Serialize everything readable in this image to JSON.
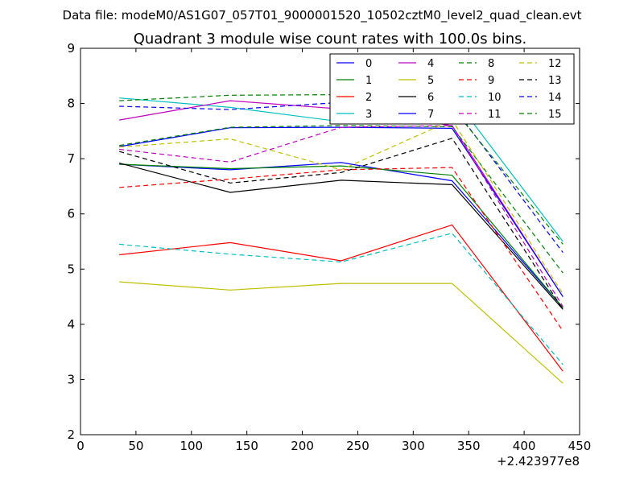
{
  "chart_data": {
    "type": "line",
    "suptitle": "Data file: modeM0/AS1G07_057T01_9000001520_10502cztM0_level2_quad_clean.evt",
    "title": "Quadrant 3 module wise count rates with 100.0s bins.",
    "xlabel": "",
    "ylabel": "",
    "x_offset_label": "+2.423977e8",
    "xlim": [
      0,
      450
    ],
    "ylim": [
      2,
      9
    ],
    "xticks": [
      0,
      50,
      100,
      150,
      200,
      250,
      300,
      350,
      400,
      450
    ],
    "yticks": [
      2,
      3,
      4,
      5,
      6,
      7,
      8,
      9
    ],
    "grid": false,
    "legend": "top-right",
    "x": [
      35,
      135,
      235,
      335,
      435
    ],
    "series": [
      {
        "name": "0",
        "color": "#0000ff",
        "dash": "solid",
        "values": [
          6.9,
          6.8,
          6.93,
          6.6,
          4.3
        ]
      },
      {
        "name": "1",
        "color": "#008000",
        "dash": "solid",
        "values": [
          6.9,
          6.82,
          6.87,
          6.7,
          4.3
        ]
      },
      {
        "name": "2",
        "color": "#ff0000",
        "dash": "solid",
        "values": [
          5.26,
          5.48,
          5.15,
          5.8,
          3.15
        ]
      },
      {
        "name": "3",
        "color": "#00bfbf",
        "dash": "solid",
        "values": [
          8.1,
          7.93,
          7.67,
          8.15,
          5.5
        ]
      },
      {
        "name": "4",
        "color": "#bf00bf",
        "dash": "solid",
        "values": [
          7.7,
          8.05,
          7.9,
          7.6,
          4.5
        ]
      },
      {
        "name": "5",
        "color": "#bfbf00",
        "dash": "solid",
        "values": [
          4.77,
          4.62,
          4.74,
          4.74,
          2.93
        ]
      },
      {
        "name": "6",
        "color": "#000000",
        "dash": "solid",
        "values": [
          6.92,
          6.39,
          6.61,
          6.53,
          4.27
        ]
      },
      {
        "name": "7",
        "color": "#0000ff",
        "dash": "solid",
        "values": [
          7.22,
          7.56,
          7.57,
          7.55,
          4.5
        ]
      },
      {
        "name": "8",
        "color": "#008000",
        "dash": "dashed",
        "values": [
          7.24,
          7.57,
          7.6,
          7.58,
          4.93
        ]
      },
      {
        "name": "9",
        "color": "#ff0000",
        "dash": "dashed",
        "values": [
          6.48,
          6.63,
          6.8,
          6.84,
          3.88
        ]
      },
      {
        "name": "10",
        "color": "#00bfbf",
        "dash": "dashed",
        "values": [
          5.45,
          5.27,
          5.13,
          5.65,
          3.27
        ]
      },
      {
        "name": "11",
        "color": "#bf00bf",
        "dash": "dashed",
        "values": [
          7.17,
          6.94,
          7.57,
          7.6,
          4.32
        ]
      },
      {
        "name": "12",
        "color": "#bfbf00",
        "dash": "dashed",
        "values": [
          7.21,
          7.36,
          6.8,
          7.7,
          4.55
        ]
      },
      {
        "name": "13",
        "color": "#000000",
        "dash": "dashed",
        "values": [
          7.13,
          6.56,
          6.75,
          7.37,
          4.27
        ]
      },
      {
        "name": "14",
        "color": "#0000ff",
        "dash": "dashed",
        "values": [
          7.95,
          7.89,
          8.02,
          7.97,
          5.3
        ]
      },
      {
        "name": "15",
        "color": "#008000",
        "dash": "dashed",
        "values": [
          8.05,
          8.15,
          8.16,
          7.93,
          5.45
        ]
      }
    ]
  }
}
